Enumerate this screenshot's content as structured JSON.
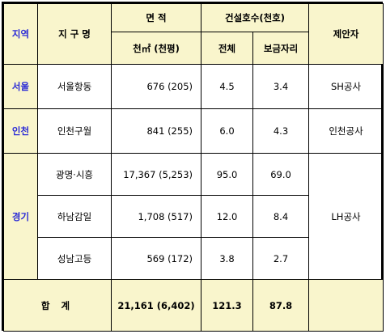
{
  "header": {
    "region": "지역",
    "district": "지 구 명",
    "area": "면 적",
    "area_unit": "천㎡ (천평)",
    "housing": "건설호수(천호)",
    "total": "전체",
    "rental": "보금자리",
    "proposer": "제안자"
  },
  "seoul": {
    "region": "서울",
    "district": "서울항동",
    "area": "676 (205)",
    "total": "4.5",
    "rental": "3.4",
    "proposer": "SH공사"
  },
  "incheon": {
    "region": "인천",
    "district": "인천구월",
    "area": "841 (255)",
    "total": "6.0",
    "rental": "4.3",
    "proposer": "인천공사"
  },
  "gyeonggi": {
    "region": "경기",
    "proposer": "LH공사",
    "rows": [
      {
        "district": "광명·시흥",
        "area": "17,367 (5,253)",
        "total": "95.0",
        "rental": "69.0"
      },
      {
        "district": "하남감일",
        "area": "1,708 (517)",
        "total": "12.0",
        "rental": "8.4"
      },
      {
        "district": "성남고등",
        "area": "569 (172)",
        "total": "3.8",
        "rental": "2.7"
      }
    ]
  },
  "sum": {
    "label": "합 계",
    "area": "21,161 (6,402)",
    "total": "121.3",
    "rental": "87.8"
  }
}
